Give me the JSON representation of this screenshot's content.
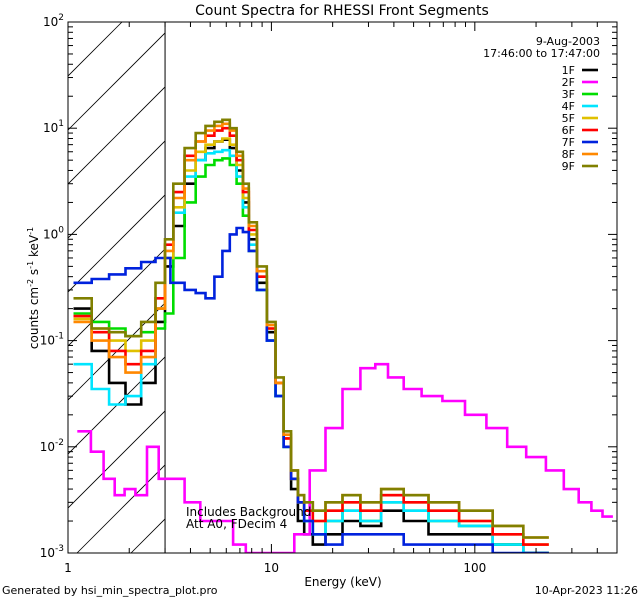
{
  "chart_data": {
    "type": "line",
    "title": "Count Spectra for RHESSI Front Segments",
    "xlabel": "Energy (keV)",
    "ylabel": "counts cm",
    "ylabel_units": {
      "exp1": "-2",
      "mid": " s",
      "exp2": "-1",
      "end": " keV",
      "exp3": "-1"
    },
    "xscale": "log",
    "yscale": "log",
    "xlim": [
      1,
      500
    ],
    "ylim": [
      0.001,
      100
    ],
    "x_ticks": [
      {
        "value": 1,
        "label": "1"
      },
      {
        "value": 10,
        "label": "10"
      },
      {
        "value": 100,
        "label": "100"
      }
    ],
    "y_ticks": [
      {
        "value": 0.001,
        "base": "10",
        "exp": "-3"
      },
      {
        "value": 0.01,
        "base": "10",
        "exp": "-2"
      },
      {
        "value": 0.1,
        "base": "10",
        "exp": "-1"
      },
      {
        "value": 1,
        "base": "10",
        "exp": "0"
      },
      {
        "value": 10,
        "base": "10",
        "exp": "1"
      },
      {
        "value": 100,
        "base": "10",
        "exp": "2"
      }
    ],
    "hatched_region": {
      "x_from": 1,
      "x_to": 3
    },
    "date": "9-Aug-2003",
    "time_range": "17:46:00 to 17:47:00",
    "annotation_lines": [
      "Includes Background",
      "Att A0, FDecim 4"
    ],
    "series": [
      {
        "name": "1F",
        "color": "#000000",
        "x": [
          1.18,
          1.45,
          1.75,
          2.1,
          2.5,
          2.9,
          3.1,
          3.5,
          4.0,
          4.5,
          5.0,
          5.5,
          6.0,
          6.5,
          7.0,
          7.5,
          8.0,
          9.0,
          10.0,
          11.0,
          12.0,
          13.0,
          14.0,
          15.0,
          17.0,
          20.0,
          25.0,
          30.0,
          40.0,
          50.0,
          70.0,
          100.0,
          150.0,
          200.0
        ],
        "y": [
          0.2,
          0.08,
          0.04,
          0.025,
          0.04,
          0.15,
          0.5,
          1.2,
          3.0,
          5.0,
          6.5,
          7.5,
          7.8,
          6.5,
          4.0,
          2.0,
          0.9,
          0.35,
          0.12,
          0.03,
          0.01,
          0.004,
          0.002,
          0.0015,
          0.0012,
          0.0015,
          0.002,
          0.0018,
          0.0025,
          0.002,
          0.0015,
          0.0015,
          0.0012,
          0.001
        ]
      },
      {
        "name": "2F",
        "color": "#ff00ff",
        "x": [
          1.2,
          1.4,
          1.6,
          1.8,
          2.0,
          2.3,
          2.6,
          3.0,
          3.5,
          4.0,
          5.0,
          6.0,
          7.0,
          8.0,
          9.0,
          10.0,
          12.0,
          14.0,
          17.0,
          20.0,
          25.0,
          30.0,
          35.0,
          40.0,
          50.0,
          60.0,
          80.0,
          100.0,
          130.0,
          160.0,
          200.0,
          250.0,
          300.0,
          350.0,
          400.0,
          450.0
        ],
        "y": [
          0.014,
          0.009,
          0.005,
          0.0035,
          0.004,
          0.0035,
          0.01,
          0.005,
          0.005,
          0.003,
          0.002,
          0.002,
          0.0012,
          0.001,
          0.001,
          0.001,
          0.001,
          0.0015,
          0.006,
          0.015,
          0.035,
          0.055,
          0.06,
          0.045,
          0.035,
          0.03,
          0.027,
          0.02,
          0.015,
          0.01,
          0.008,
          0.006,
          0.004,
          0.003,
          0.0025,
          0.0022
        ]
      },
      {
        "name": "3F",
        "color": "#00dd00",
        "x": [
          1.18,
          1.45,
          1.75,
          2.1,
          2.5,
          2.9,
          3.1,
          3.5,
          4.0,
          4.5,
          5.0,
          5.5,
          6.0,
          6.5,
          7.0,
          7.5,
          8.0,
          9.0,
          10.0,
          11.0,
          12.0,
          13.0,
          14.0,
          15.0,
          17.0,
          20.0,
          25.0,
          30.0,
          40.0,
          50.0,
          70.0,
          100.0,
          150.0,
          200.0
        ],
        "y": [
          0.18,
          0.15,
          0.13,
          0.11,
          0.12,
          0.13,
          0.18,
          0.6,
          2.0,
          3.5,
          4.5,
          5.0,
          5.2,
          4.5,
          3.0,
          1.5,
          0.7,
          0.3,
          0.1,
          0.03,
          0.01,
          0.005,
          0.003,
          0.002,
          0.0015,
          0.002,
          0.0025,
          0.002,
          0.003,
          0.0025,
          0.002,
          0.0018,
          0.0012,
          0.001
        ]
      },
      {
        "name": "4F",
        "color": "#00e5ff",
        "x": [
          1.18,
          1.45,
          1.75,
          2.1,
          2.5,
          2.9,
          3.1,
          3.5,
          4.0,
          4.5,
          5.0,
          5.5,
          6.0,
          6.5,
          7.0,
          7.5,
          8.0,
          9.0,
          10.0,
          11.0,
          12.0,
          13.0,
          14.0,
          15.0,
          17.0,
          20.0,
          25.0,
          30.0,
          40.0,
          50.0,
          70.0,
          100.0,
          150.0,
          200.0
        ],
        "y": [
          0.06,
          0.035,
          0.025,
          0.03,
          0.06,
          0.2,
          0.6,
          1.6,
          3.5,
          5.0,
          5.8,
          6.0,
          6.2,
          5.5,
          3.5,
          1.8,
          0.8,
          0.3,
          0.1,
          0.03,
          0.01,
          0.005,
          0.003,
          0.002,
          0.0015,
          0.002,
          0.0025,
          0.002,
          0.003,
          0.0025,
          0.002,
          0.0018,
          0.0012,
          0.001
        ]
      },
      {
        "name": "5F",
        "color": "#e0c000",
        "x": [
          1.18,
          1.45,
          1.75,
          2.1,
          2.5,
          2.9,
          3.1,
          3.5,
          4.0,
          4.5,
          5.0,
          5.5,
          6.0,
          6.5,
          7.0,
          7.5,
          8.0,
          9.0,
          10.0,
          11.0,
          12.0,
          13.0,
          14.0,
          15.0,
          17.0,
          20.0,
          25.0,
          30.0,
          40.0,
          50.0,
          70.0,
          100.0,
          150.0,
          200.0
        ],
        "y": [
          0.16,
          0.13,
          0.1,
          0.08,
          0.1,
          0.2,
          0.6,
          1.8,
          4.0,
          6.0,
          7.0,
          7.5,
          8.0,
          7.0,
          4.5,
          2.2,
          1.0,
          0.4,
          0.13,
          0.04,
          0.012,
          0.005,
          0.003,
          0.0025,
          0.002,
          0.0025,
          0.003,
          0.0025,
          0.0035,
          0.003,
          0.0025,
          0.002,
          0.0015,
          0.0012
        ]
      },
      {
        "name": "6F",
        "color": "#ff0000",
        "x": [
          1.18,
          1.45,
          1.75,
          2.1,
          2.5,
          2.9,
          3.1,
          3.5,
          4.0,
          4.5,
          5.0,
          5.5,
          6.0,
          6.5,
          7.0,
          7.5,
          8.0,
          9.0,
          10.0,
          11.0,
          12.0,
          13.0,
          14.0,
          15.0,
          17.0,
          20.0,
          25.0,
          30.0,
          40.0,
          50.0,
          70.0,
          100.0,
          150.0,
          200.0
        ],
        "y": [
          0.17,
          0.12,
          0.08,
          0.06,
          0.08,
          0.25,
          0.8,
          2.5,
          5.5,
          7.5,
          8.5,
          9.5,
          10.0,
          8.5,
          5.0,
          2.5,
          1.1,
          0.4,
          0.13,
          0.04,
          0.012,
          0.005,
          0.003,
          0.0025,
          0.002,
          0.0025,
          0.003,
          0.0025,
          0.0035,
          0.003,
          0.0025,
          0.002,
          0.0015,
          0.0012
        ]
      },
      {
        "name": "7F",
        "color": "#0022dd",
        "x": [
          1.18,
          1.45,
          1.75,
          2.1,
          2.5,
          2.9,
          3.5,
          4.0,
          4.5,
          5.0,
          5.5,
          6.0,
          6.5,
          7.0,
          7.5,
          8.0,
          9.0,
          10.0,
          11.0,
          12.0,
          13.0,
          14.0,
          15.0,
          17.0,
          20.0,
          25.0,
          30.0,
          40.0,
          50.0,
          70.0,
          100.0,
          150.0,
          200.0
        ],
        "y": [
          0.35,
          0.38,
          0.42,
          0.48,
          0.55,
          0.6,
          0.35,
          0.3,
          0.28,
          0.25,
          0.4,
          0.7,
          1.0,
          1.15,
          1.05,
          0.7,
          0.3,
          0.1,
          0.03,
          0.01,
          0.005,
          0.003,
          0.002,
          0.0015,
          0.0012,
          0.0015,
          0.0015,
          0.0015,
          0.0012,
          0.0012,
          0.0012,
          0.001,
          0.001
        ]
      },
      {
        "name": "8F",
        "color": "#ff8800",
        "x": [
          1.18,
          1.45,
          1.75,
          2.1,
          2.5,
          2.9,
          3.1,
          3.5,
          4.0,
          4.5,
          5.0,
          5.5,
          6.0,
          6.5,
          7.0,
          7.5,
          8.0,
          9.0,
          10.0,
          11.0,
          12.0,
          13.0,
          14.0,
          15.0,
          17.0,
          20.0,
          25.0,
          30.0,
          40.0,
          50.0,
          70.0,
          100.0,
          150.0,
          200.0
        ],
        "y": [
          0.15,
          0.1,
          0.07,
          0.05,
          0.07,
          0.2,
          0.7,
          2.2,
          5.0,
          7.5,
          9.5,
          10.5,
          11.0,
          9.5,
          5.5,
          2.7,
          1.2,
          0.45,
          0.14,
          0.04,
          0.013,
          0.006,
          0.0035,
          0.003,
          0.0025,
          0.003,
          0.0035,
          0.003,
          0.004,
          0.0035,
          0.003,
          0.0025,
          0.0018,
          0.0014
        ]
      },
      {
        "name": "9F",
        "color": "#808000",
        "x": [
          1.18,
          1.45,
          1.75,
          2.1,
          2.5,
          2.9,
          3.1,
          3.5,
          4.0,
          4.5,
          5.0,
          5.5,
          6.0,
          6.5,
          7.0,
          7.5,
          8.0,
          9.0,
          10.0,
          11.0,
          12.0,
          13.0,
          14.0,
          15.0,
          17.0,
          20.0,
          25.0,
          30.0,
          40.0,
          50.0,
          70.0,
          100.0,
          150.0,
          200.0
        ],
        "y": [
          0.25,
          0.13,
          0.12,
          0.11,
          0.15,
          0.35,
          0.9,
          3.0,
          6.5,
          9.0,
          10.5,
          11.5,
          12.0,
          10.0,
          6.0,
          3.0,
          1.3,
          0.5,
          0.15,
          0.045,
          0.014,
          0.006,
          0.0035,
          0.003,
          0.0025,
          0.003,
          0.0035,
          0.003,
          0.004,
          0.0035,
          0.003,
          0.0025,
          0.0018,
          0.0014
        ]
      }
    ]
  },
  "footer": {
    "generated_by": "Generated by hsi_min_spectra_plot.pro",
    "timestamp": "10-Apr-2023 11:26"
  }
}
